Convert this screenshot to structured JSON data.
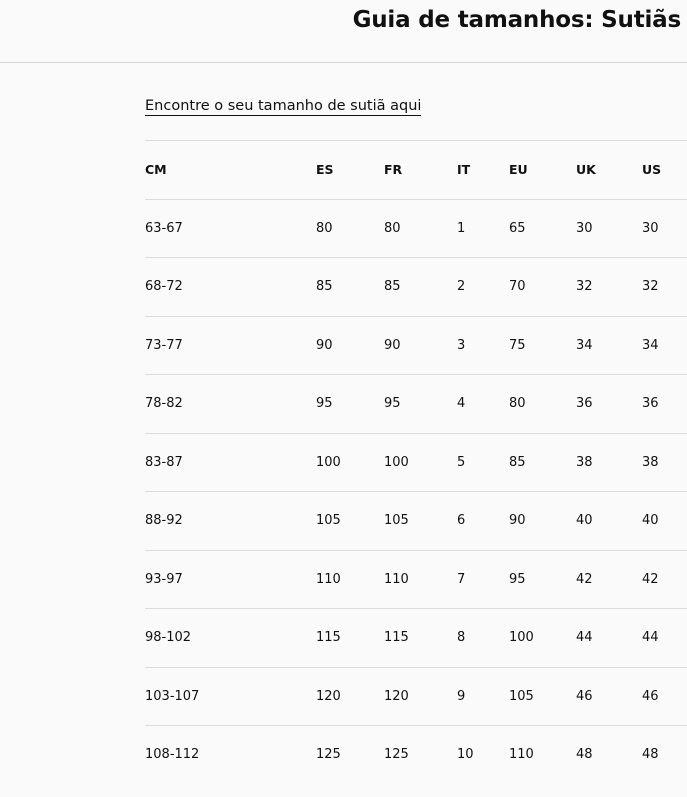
{
  "header": {
    "title": "Guia de tamanhos: Sutiãs"
  },
  "link": {
    "label": "Encontre o seu tamanho de sutiã aqui"
  },
  "table": {
    "columns": [
      "CM",
      "ES",
      "FR",
      "IT",
      "EU",
      "UK",
      "US"
    ],
    "rows": [
      [
        "63-67",
        "80",
        "80",
        "1",
        "65",
        "30",
        "30"
      ],
      [
        "68-72",
        "85",
        "85",
        "2",
        "70",
        "32",
        "32"
      ],
      [
        "73-77",
        "90",
        "90",
        "3",
        "75",
        "34",
        "34"
      ],
      [
        "78-82",
        "95",
        "95",
        "4",
        "80",
        "36",
        "36"
      ],
      [
        "83-87",
        "100",
        "100",
        "5",
        "85",
        "38",
        "38"
      ],
      [
        "88-92",
        "105",
        "105",
        "6",
        "90",
        "40",
        "40"
      ],
      [
        "93-97",
        "110",
        "110",
        "7",
        "95",
        "42",
        "42"
      ],
      [
        "98-102",
        "115",
        "115",
        "8",
        "100",
        "44",
        "44"
      ],
      [
        "103-107",
        "120",
        "120",
        "9",
        "105",
        "46",
        "46"
      ],
      [
        "108-112",
        "125",
        "125",
        "10",
        "110",
        "48",
        "48"
      ]
    ]
  }
}
